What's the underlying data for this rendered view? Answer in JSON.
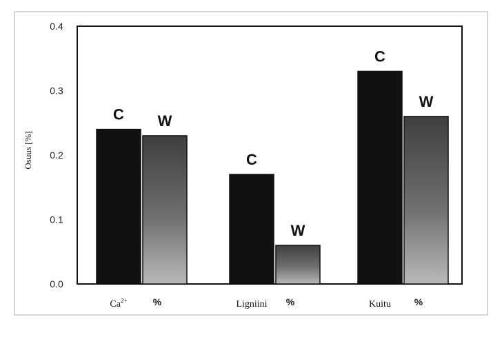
{
  "chart_data": {
    "type": "bar",
    "ylabel": "Osuus [%]",
    "ylim": [
      0,
      0.4
    ],
    "yticks": [
      "0.0",
      "0.1",
      "0.2",
      "0.3",
      "0.4"
    ],
    "grid": false,
    "categories": [
      {
        "label": "Ca",
        "sup": "2+",
        "unit": "%"
      },
      {
        "label": "Ligniini",
        "sup": "",
        "unit": "%"
      },
      {
        "label": "Kuitu",
        "sup": "",
        "unit": "%"
      }
    ],
    "series": [
      {
        "name": "C",
        "color": "#111111",
        "values": [
          0.24,
          0.17,
          0.33
        ]
      },
      {
        "name": "W",
        "color": "#6e6e6e",
        "values": [
          0.23,
          0.06,
          0.26
        ]
      }
    ]
  }
}
